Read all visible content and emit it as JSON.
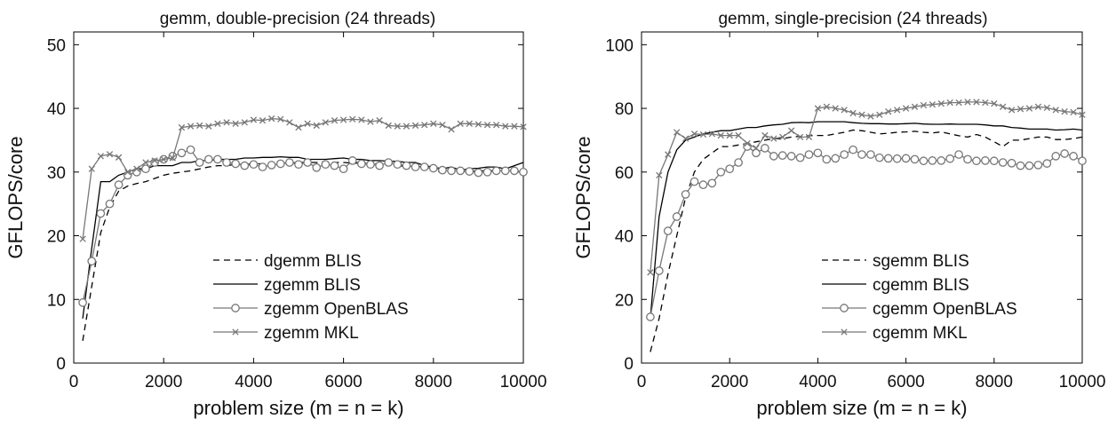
{
  "chart_data": [
    {
      "type": "line",
      "title": "gemm, double-precision (24 threads)",
      "xlabel": "problem size (m = n = k)",
      "ylabel": "GFLOPS/core",
      "xlim": [
        0,
        10000
      ],
      "ylim": [
        0,
        52
      ],
      "xticks": [
        0,
        2000,
        4000,
        6000,
        8000,
        10000
      ],
      "yticks": [
        0,
        10,
        20,
        30,
        40,
        50
      ],
      "grid": false,
      "legend_position": "bottom-right",
      "series": [
        {
          "name": "dgemm BLIS",
          "style": "dashed",
          "marker": "none",
          "color": "#000000",
          "x": [
            200,
            400,
            600,
            800,
            1000,
            1200,
            1400,
            1600,
            1800,
            2000,
            2200,
            2400,
            2600,
            2800,
            3000,
            3200,
            3400,
            3600,
            3800,
            4000,
            4200,
            4400,
            4600,
            4800,
            5000,
            5200,
            5400,
            5600,
            5800,
            6000,
            6200,
            6400,
            6600,
            6800,
            7000,
            7200,
            7400,
            7600,
            7800,
            8000,
            8200,
            8400,
            8600,
            8800,
            9000,
            9200,
            9400,
            9600,
            9800,
            10000
          ],
          "y": [
            3.5,
            12,
            20.5,
            24.5,
            27,
            27.8,
            28.2,
            28.5,
            29,
            29.5,
            29.8,
            30,
            30.2,
            30.5,
            30.8,
            31,
            31,
            31.2,
            31.2,
            31.3,
            31.3,
            31.4,
            31.4,
            31.4,
            31.5,
            31.5,
            31.5,
            31.6,
            31.5,
            31.5,
            31.4,
            31.4,
            31.3,
            31.3,
            31.3,
            31,
            30.9,
            30.9,
            30.8,
            30.5,
            29.8,
            30.2,
            30.1,
            30.1,
            30.2,
            30.2,
            30.2,
            30.1,
            30.1,
            30
          ]
        },
        {
          "name": "zgemm BLIS",
          "style": "solid",
          "marker": "none",
          "color": "#000000",
          "x": [
            200,
            400,
            600,
            800,
            1000,
            1200,
            1400,
            1600,
            1800,
            2000,
            2200,
            2400,
            2600,
            2800,
            3000,
            3200,
            3400,
            3600,
            3800,
            4000,
            4200,
            4400,
            4600,
            4800,
            5000,
            5200,
            5400,
            5600,
            5800,
            6000,
            6200,
            6400,
            6600,
            6800,
            7000,
            7200,
            7400,
            7600,
            7800,
            8000,
            8200,
            8400,
            8600,
            8800,
            9000,
            9200,
            9400,
            9600,
            9800,
            10000
          ],
          "y": [
            7,
            18,
            28.5,
            28.5,
            29.5,
            30,
            30.5,
            30.5,
            31,
            31,
            31,
            31.5,
            31.5,
            31.8,
            31.8,
            32,
            32,
            32,
            32.2,
            32.2,
            32.3,
            32.3,
            32.4,
            32.3,
            32.3,
            32,
            32,
            32,
            32.1,
            32.2,
            32,
            32,
            31.8,
            31.8,
            31.7,
            31.7,
            31.5,
            31.5,
            31,
            30.8,
            30.5,
            30.8,
            30.3,
            30.5,
            30.6,
            30.8,
            30.8,
            30.5,
            31,
            31.5
          ]
        },
        {
          "name": "zgemm OpenBLAS",
          "style": "solid",
          "marker": "circle",
          "color": "#777777",
          "x": [
            200,
            400,
            600,
            800,
            1000,
            1200,
            1400,
            1600,
            1800,
            2000,
            2200,
            2400,
            2600,
            2800,
            3000,
            3200,
            3400,
            3600,
            3800,
            4000,
            4200,
            4400,
            4600,
            4800,
            5000,
            5200,
            5400,
            5600,
            5800,
            6000,
            6200,
            6400,
            6600,
            6800,
            7000,
            7200,
            7400,
            7600,
            7800,
            8000,
            8200,
            8400,
            8600,
            8800,
            9000,
            9200,
            9400,
            9600,
            9800,
            10000
          ],
          "y": [
            9.5,
            16,
            23.5,
            25,
            28,
            29.5,
            30,
            30.5,
            31.5,
            32,
            32.5,
            33,
            33.5,
            31.5,
            32,
            32,
            31.5,
            31.3,
            31,
            31.2,
            30.8,
            31.1,
            31.3,
            31.5,
            31.2,
            31.5,
            30.7,
            31.2,
            31,
            30.5,
            31.8,
            31.3,
            31.2,
            31,
            31.5,
            31.2,
            31,
            30.8,
            30.8,
            30.6,
            30.3,
            30.2,
            30.2,
            30.1,
            29.9,
            30,
            30.2,
            30.2,
            30.2,
            30
          ]
        },
        {
          "name": "zgemm MKL",
          "style": "solid",
          "marker": "x",
          "color": "#777777",
          "x": [
            200,
            400,
            600,
            800,
            1000,
            1200,
            1400,
            1600,
            1800,
            2000,
            2200,
            2400,
            2600,
            2800,
            3000,
            3200,
            3400,
            3600,
            3800,
            4000,
            4200,
            4400,
            4600,
            4800,
            5000,
            5200,
            5400,
            5600,
            5800,
            6000,
            6200,
            6400,
            6600,
            6800,
            7000,
            7200,
            7400,
            7600,
            7800,
            8000,
            8200,
            8400,
            8600,
            8800,
            9000,
            9200,
            9400,
            9600,
            9800,
            10000
          ],
          "y": [
            19.5,
            30.5,
            32.5,
            32.8,
            32.3,
            30,
            30.5,
            31.5,
            31.8,
            32,
            32.2,
            37,
            37.2,
            37.3,
            37.2,
            37.6,
            37.8,
            37.6,
            37.8,
            38.2,
            38.1,
            38.4,
            38.3,
            37.8,
            37,
            37.6,
            37.3,
            37.8,
            38.1,
            38.2,
            38.3,
            38.2,
            37.9,
            38.1,
            37.3,
            37.2,
            37.2,
            37.3,
            37.4,
            37.6,
            37.4,
            36.7,
            37.6,
            37.6,
            37.5,
            37.4,
            37.4,
            37.2,
            37.2,
            37.1
          ]
        }
      ]
    },
    {
      "type": "line",
      "title": "gemm, single-precision (24 threads)",
      "xlabel": "problem size (m = n = k)",
      "ylabel": "GFLOPS/core",
      "xlim": [
        0,
        10000
      ],
      "ylim": [
        0,
        104
      ],
      "xticks": [
        0,
        2000,
        4000,
        6000,
        8000,
        10000
      ],
      "yticks": [
        0,
        20,
        40,
        60,
        80,
        100
      ],
      "grid": false,
      "legend_position": "bottom-right",
      "series": [
        {
          "name": "sgemm BLIS",
          "style": "dashed",
          "marker": "none",
          "color": "#000000",
          "x": [
            200,
            400,
            600,
            800,
            1000,
            1200,
            1400,
            1600,
            1800,
            2000,
            2200,
            2400,
            2600,
            2800,
            3000,
            3200,
            3400,
            3600,
            3800,
            4000,
            4200,
            4400,
            4600,
            4800,
            5000,
            5200,
            5400,
            5600,
            5800,
            6000,
            6200,
            6400,
            6600,
            6800,
            7000,
            7200,
            7400,
            7600,
            7800,
            8000,
            8200,
            8400,
            8600,
            8800,
            9000,
            9200,
            9400,
            9600,
            9800,
            10000
          ],
          "y": [
            3.5,
            14,
            28,
            40,
            52,
            60,
            64,
            66,
            68,
            68,
            68.5,
            69,
            69.5,
            70,
            70.5,
            70.5,
            71,
            71.2,
            71.4,
            71.5,
            71.5,
            72,
            72.5,
            73.2,
            73,
            72.5,
            72,
            72.2,
            72.5,
            72.6,
            72.8,
            72.5,
            72.3,
            72.6,
            72,
            71.4,
            71,
            71.8,
            71,
            69.5,
            68,
            70,
            70,
            70.5,
            71,
            71,
            70.2,
            70.2,
            70.5,
            71
          ]
        },
        {
          "name": "cgemm BLIS",
          "style": "solid",
          "marker": "none",
          "color": "#000000",
          "x": [
            200,
            400,
            600,
            800,
            1000,
            1200,
            1400,
            1600,
            1800,
            2000,
            2200,
            2400,
            2600,
            2800,
            3000,
            3200,
            3400,
            3600,
            3800,
            4000,
            4200,
            4400,
            4600,
            4800,
            5000,
            5200,
            5400,
            5600,
            5800,
            6000,
            6200,
            6400,
            6600,
            6800,
            7000,
            7200,
            7400,
            7600,
            7800,
            8000,
            8200,
            8400,
            8600,
            8800,
            9000,
            9200,
            9400,
            9600,
            9800,
            10000
          ],
          "y": [
            14,
            46,
            60,
            67,
            70,
            71,
            72,
            72.5,
            73,
            73,
            73.5,
            74,
            74,
            74.5,
            74.8,
            75,
            75.5,
            75.6,
            75.5,
            75.8,
            75.8,
            75.8,
            75.8,
            75.5,
            75.3,
            75.2,
            75.2,
            75.1,
            75.1,
            75.2,
            75.3,
            75.1,
            75,
            75,
            75.1,
            75,
            75,
            75,
            74.8,
            74.5,
            74.5,
            74,
            73.8,
            73.5,
            73.5,
            73.5,
            73.2,
            73.3,
            73.5,
            73.2
          ]
        },
        {
          "name": "cgemm OpenBLAS",
          "style": "solid",
          "marker": "circle",
          "color": "#777777",
          "x": [
            200,
            400,
            600,
            800,
            1000,
            1200,
            1400,
            1600,
            1800,
            2000,
            2200,
            2400,
            2600,
            2800,
            3000,
            3200,
            3400,
            3600,
            3800,
            4000,
            4200,
            4400,
            4600,
            4800,
            5000,
            5200,
            5400,
            5600,
            5800,
            6000,
            6200,
            6400,
            6600,
            6800,
            7000,
            7200,
            7400,
            7600,
            7800,
            8000,
            8200,
            8400,
            8600,
            8800,
            9000,
            9200,
            9400,
            9600,
            9800,
            10000
          ],
          "y": [
            14.5,
            29,
            41.5,
            46,
            53,
            57,
            56,
            56.5,
            60,
            61,
            63,
            68,
            66,
            67.5,
            65,
            65.2,
            65,
            64.5,
            65.5,
            66,
            64,
            64.3,
            65.5,
            67,
            65.5,
            65.5,
            64.5,
            64.3,
            64.2,
            64.3,
            64,
            63.5,
            63.6,
            63.6,
            64.2,
            65.5,
            64,
            63.5,
            63.6,
            63.5,
            63,
            62.8,
            62,
            62,
            62.2,
            62.7,
            65,
            65.8,
            65,
            63.5
          ]
        },
        {
          "name": "cgemm MKL",
          "style": "solid",
          "marker": "x",
          "color": "#777777",
          "x": [
            200,
            400,
            600,
            800,
            1000,
            1200,
            1400,
            1600,
            1800,
            2000,
            2200,
            2400,
            2600,
            2800,
            3000,
            3200,
            3400,
            3600,
            3800,
            4000,
            4200,
            4400,
            4600,
            4800,
            5000,
            5200,
            5400,
            5600,
            5800,
            6000,
            6200,
            6400,
            6600,
            6800,
            7000,
            7200,
            7400,
            7600,
            7800,
            8000,
            8200,
            8400,
            8600,
            8800,
            9000,
            9200,
            9400,
            9600,
            9800,
            10000
          ],
          "y": [
            28.5,
            59,
            65.5,
            72.5,
            70.5,
            72,
            71.8,
            72,
            71.5,
            71.5,
            71.5,
            69,
            67.5,
            71.5,
            70.5,
            71,
            73,
            71,
            71,
            80,
            80.5,
            80,
            79.5,
            78.5,
            78,
            77.5,
            78,
            79,
            79.5,
            80,
            80.5,
            81,
            81.2,
            81.5,
            81.8,
            81.8,
            82,
            82,
            81.8,
            81.5,
            80.5,
            79.5,
            79.8,
            80,
            80.5,
            80.2,
            79.5,
            79,
            78.8,
            78
          ]
        }
      ]
    }
  ]
}
